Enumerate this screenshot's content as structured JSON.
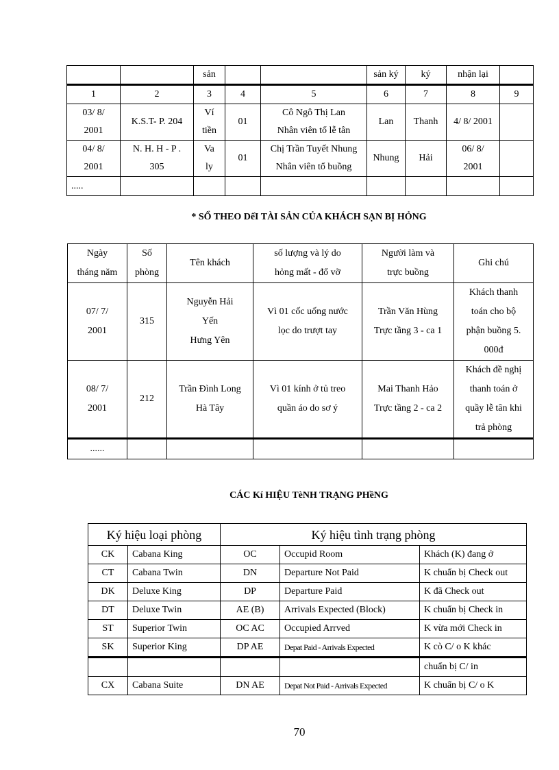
{
  "table1": {
    "header_partial": [
      "",
      "",
      "sản",
      "",
      "",
      "sản ký",
      "ký",
      "nhận  lại",
      ""
    ],
    "numbers": [
      "1",
      "2",
      "3",
      "4",
      "5",
      "6",
      "7",
      "8",
      "9"
    ],
    "rows": [
      [
        "03/ 8/\n2001",
        "K.S.T- P. 204",
        "Ví\ntiền",
        "01",
        "Cô Ngô Thị Lan\nNhân viên tổ lễ tân",
        "Lan",
        "Thanh",
        "4/ 8/ 2001",
        ""
      ],
      [
        "04/ 8/\n2001",
        "N. H. H - P .\n305",
        "Va\nly",
        "01",
        "Chị Trần Tuyết Nhung\nNhân viên tổ buồng",
        "Nhung",
        "Hải",
        "06/ 8/\n2001",
        ""
      ],
      [
        ".....",
        "",
        "",
        "",
        "",
        "",
        "",
        "",
        ""
      ]
    ]
  },
  "section2_title": "* SỔ THEO DếI TÀI SẢN CỦA KHÁCH  SẠN BỊ HỎNG",
  "table2": {
    "headers": [
      "Ngày\ntháng năm",
      "Số\nphòng",
      "Tên khách",
      "số lượng  và lý  do\nhỏng mất - đổ vỡ",
      "Người làm và\ntrực buồng",
      "Ghi chú"
    ],
    "rows": [
      [
        "07/ 7/\n2001",
        "315",
        "Nguyễn  Hải\nYến\nHưng Yên",
        "Vì 01 cốc uống nước\nlọc do trượt tay",
        "Trần  Văn Hùng\nTrực tầng 3 - ca 1",
        "Khách thanh\ntoán cho bộ\nphận buồng 5.\n000đ"
      ],
      [
        "08/ 7/\n2001",
        "212",
        "Trần Đình  Long\nHà Tây",
        "Vì 01 kính  ở tủ treo\nquần  áo do sơ ý",
        "Mai Thanh  Hảo\nTrực tầng 2 - ca 2",
        "Khách đề nghị\nthanh toán ở\nquầy lễ tân khi\ntrả phòng"
      ],
      [
        "......",
        "",
        "",
        "",
        "",
        ""
      ]
    ]
  },
  "section3_title": "CÁC Kí HIỆU  TèNH TRẠNG PHềNG",
  "table3": {
    "header_room_type": "Ký hiệu loại phòng",
    "header_room_status": "Ký hiệu tình trạng phòng",
    "rows": [
      [
        "CK",
        "Cabana King",
        "OC",
        "Occupid Room",
        "Khách (K) đang ở"
      ],
      [
        "CT",
        "Cabana Twin",
        "DN",
        "Departure Not Paid",
        "K chuẩn bị Check out"
      ],
      [
        "DK",
        "Deluxe King",
        "DP",
        "Departure Paid",
        "K đã Check out"
      ],
      [
        "DT",
        "Deluxe Twin",
        "AE (B)",
        "Arrivals  Expected (Block)",
        "K chuẩn bị Check in"
      ],
      [
        "ST",
        "Superior Twin",
        "OC AC",
        "Occupied Arrved",
        "K vừa mới Check in"
      ],
      [
        "SK",
        "Superior  King",
        "DP AE",
        "Depat Paid - Arrivals Expected",
        "K cò C/ o K khác"
      ],
      [
        "",
        "",
        "",
        "",
        "chuẩn bị C/ in"
      ],
      [
        "CX",
        "Cabana Suite",
        "DN AE",
        "Depat Not Paid - Arrivals Expected",
        "K chuẩn bị C/ o K"
      ]
    ]
  },
  "page_number": "70"
}
